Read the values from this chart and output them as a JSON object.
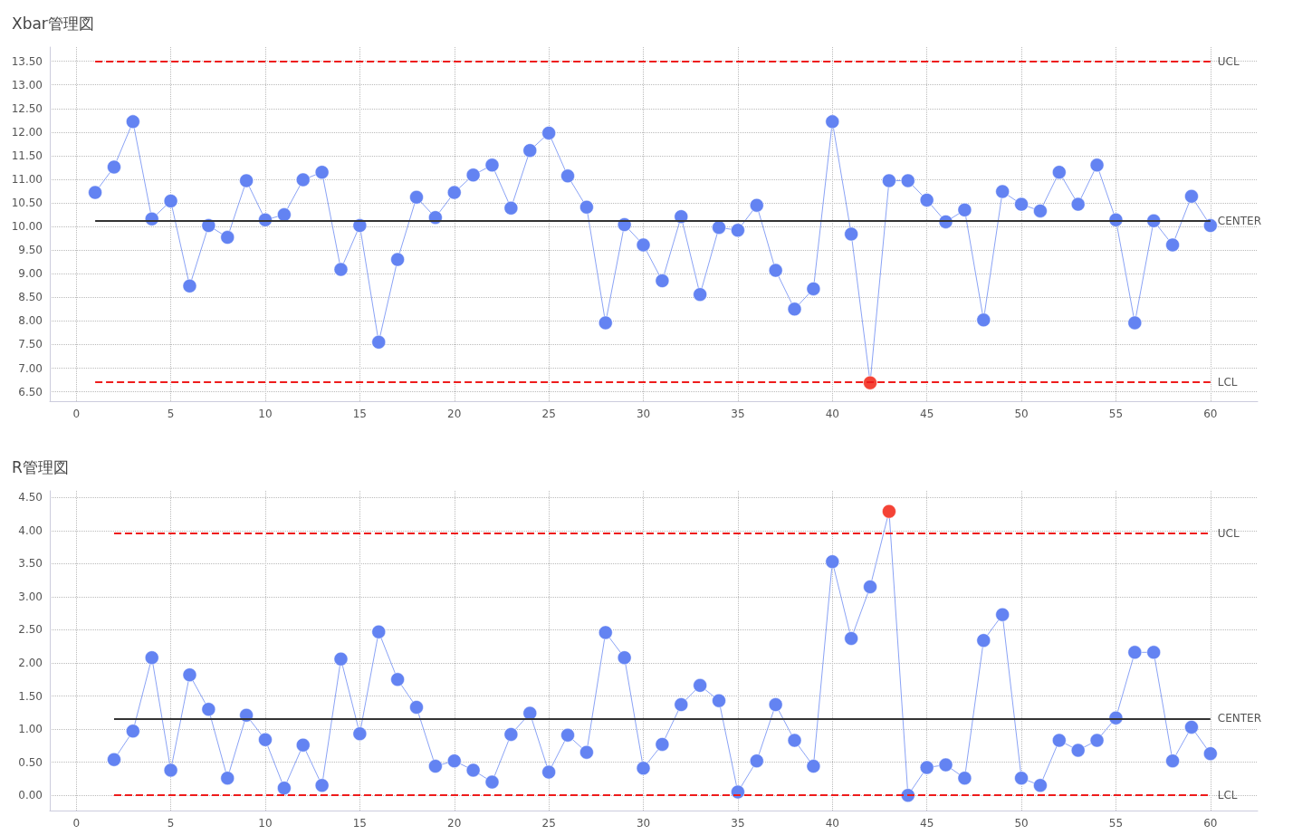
{
  "chart_data": [
    {
      "type": "line",
      "title": "Xbar管理図",
      "marker": "circle",
      "grid": true,
      "xlim": [
        -1.4,
        62.5
      ],
      "xticks": [
        0,
        5,
        10,
        15,
        20,
        25,
        30,
        35,
        40,
        45,
        50,
        55,
        60
      ],
      "ylim": [
        6.3,
        13.8
      ],
      "yticks": [
        {
          "value": 6.5,
          "label": "6.50"
        },
        {
          "value": 7,
          "label": "7.00"
        },
        {
          "value": 7.5,
          "label": "7.50"
        },
        {
          "value": 8,
          "label": "8.00"
        },
        {
          "value": 8.5,
          "label": "8.50"
        },
        {
          "value": 9,
          "label": "9.00"
        },
        {
          "value": 9.5,
          "label": "9.50"
        },
        {
          "value": 10,
          "label": "10.00"
        },
        {
          "value": 10.5,
          "label": "10.50"
        },
        {
          "value": 11,
          "label": "11.00"
        },
        {
          "value": 11.5,
          "label": "11.50"
        },
        {
          "value": 12,
          "label": "12.00"
        },
        {
          "value": 12.5,
          "label": "12.50"
        },
        {
          "value": 13,
          "label": "13.00"
        },
        {
          "value": 13.5,
          "label": "13.50"
        }
      ],
      "series": [
        {
          "color": "#6383f2",
          "x": [
            1,
            2,
            3,
            4,
            5,
            6,
            7,
            8,
            9,
            10,
            11,
            12,
            13,
            14,
            15,
            16,
            17,
            18,
            19,
            20,
            21,
            22,
            23,
            24,
            25,
            26,
            27,
            28,
            29,
            30,
            31,
            32,
            33,
            34,
            35,
            36,
            37,
            38,
            39,
            40,
            41,
            42,
            43,
            44,
            45,
            46,
            47,
            48,
            49,
            50,
            51,
            52,
            53,
            54,
            55,
            56,
            57,
            58,
            59,
            60
          ],
          "values": [
            10.72,
            11.26,
            12.22,
            10.16,
            10.54,
            8.74,
            10.02,
            9.77,
            10.97,
            10.14,
            10.25,
            10.99,
            11.15,
            9.09,
            10.02,
            7.55,
            9.3,
            10.62,
            10.19,
            10.72,
            11.09,
            11.3,
            10.39,
            11.61,
            11.98,
            11.07,
            10.41,
            7.96,
            10.04,
            9.61,
            8.85,
            10.21,
            8.56,
            9.98,
            9.92,
            10.45,
            9.07,
            8.25,
            8.68,
            12.22,
            9.84,
            6.69,
            10.97,
            10.97,
            10.56,
            10.1,
            10.35,
            8.02,
            10.74,
            10.47,
            10.33,
            11.15,
            10.47,
            11.3,
            10.14,
            7.96,
            10.12,
            9.61,
            10.64,
            10.02
          ],
          "colors": [
            "#6383f2",
            "#6383f2",
            "#6383f2",
            "#6383f2",
            "#6383f2",
            "#6383f2",
            "#6383f2",
            "#6383f2",
            "#6383f2",
            "#6383f2",
            "#6383f2",
            "#6383f2",
            "#6383f2",
            "#6383f2",
            "#6383f2",
            "#6383f2",
            "#6383f2",
            "#6383f2",
            "#6383f2",
            "#6383f2",
            "#6383f2",
            "#6383f2",
            "#6383f2",
            "#6383f2",
            "#6383f2",
            "#6383f2",
            "#6383f2",
            "#6383f2",
            "#6383f2",
            "#6383f2",
            "#6383f2",
            "#6383f2",
            "#6383f2",
            "#6383f2",
            "#6383f2",
            "#6383f2",
            "#6383f2",
            "#6383f2",
            "#6383f2",
            "#6383f2",
            "#6383f2",
            "#f44336",
            "#6383f2",
            "#6383f2",
            "#6383f2",
            "#6383f2",
            "#6383f2",
            "#6383f2",
            "#6383f2",
            "#6383f2",
            "#6383f2",
            "#6383f2",
            "#6383f2",
            "#6383f2",
            "#6383f2",
            "#6383f2",
            "#6383f2",
            "#6383f2",
            "#6383f2",
            "#6383f2"
          ]
        }
      ],
      "ref_lines": [
        {
          "axis": "y",
          "value": 13.5,
          "label": "UCL",
          "color": "#ee1c1c",
          "line_style": "dashed"
        },
        {
          "axis": "y",
          "value": 10.12,
          "label": "CENTER",
          "color": "#333333",
          "line_style": "solid"
        },
        {
          "axis": "y",
          "value": 6.71,
          "label": "LCL",
          "color": "#ee1c1c",
          "line_style": "dashed"
        }
      ]
    },
    {
      "type": "line",
      "title": "R管理図",
      "marker": "circle",
      "grid": true,
      "xlim": [
        -1.4,
        62.5
      ],
      "xticks": [
        0,
        5,
        10,
        15,
        20,
        25,
        30,
        35,
        40,
        45,
        50,
        55,
        60
      ],
      "ylim": [
        -0.23,
        4.6
      ],
      "yticks": [
        {
          "value": 0,
          "label": "0.00"
        },
        {
          "value": 0.5,
          "label": "0.50"
        },
        {
          "value": 1,
          "label": "1.00"
        },
        {
          "value": 1.5,
          "label": "1.50"
        },
        {
          "value": 2,
          "label": "2.00"
        },
        {
          "value": 2.5,
          "label": "2.50"
        },
        {
          "value": 3,
          "label": "3.00"
        },
        {
          "value": 3.5,
          "label": "3.50"
        },
        {
          "value": 4,
          "label": "4.00"
        },
        {
          "value": 4.5,
          "label": "4.50"
        }
      ],
      "series": [
        {
          "color": "#6383f2",
          "x": [
            2,
            3,
            4,
            5,
            6,
            7,
            8,
            9,
            10,
            11,
            12,
            13,
            14,
            15,
            16,
            17,
            18,
            19,
            20,
            21,
            22,
            23,
            24,
            25,
            26,
            27,
            28,
            29,
            30,
            31,
            32,
            33,
            34,
            35,
            36,
            37,
            38,
            39,
            40,
            41,
            42,
            43,
            44,
            45,
            46,
            47,
            48,
            49,
            50,
            51,
            52,
            53,
            54,
            55,
            56,
            57,
            58,
            59,
            60
          ],
          "values": [
            0.54,
            0.97,
            2.08,
            0.38,
            1.82,
            1.3,
            0.26,
            1.21,
            0.84,
            0.11,
            0.76,
            0.15,
            2.06,
            0.93,
            2.47,
            1.75,
            1.33,
            0.44,
            0.52,
            0.38,
            0.2,
            0.92,
            1.24,
            0.35,
            0.91,
            0.65,
            2.46,
            2.08,
            0.41,
            0.77,
            1.37,
            1.66,
            1.43,
            0.05,
            0.52,
            1.37,
            0.83,
            0.44,
            3.53,
            2.37,
            3.15,
            4.29,
            0,
            0.42,
            0.46,
            0.26,
            2.34,
            2.73,
            0.26,
            0.15,
            0.83,
            0.68,
            0.83,
            1.17,
            2.16,
            2.16,
            0.52,
            1.03,
            0.63
          ],
          "colors": [
            "#6383f2",
            "#6383f2",
            "#6383f2",
            "#6383f2",
            "#6383f2",
            "#6383f2",
            "#6383f2",
            "#6383f2",
            "#6383f2",
            "#6383f2",
            "#6383f2",
            "#6383f2",
            "#6383f2",
            "#6383f2",
            "#6383f2",
            "#6383f2",
            "#6383f2",
            "#6383f2",
            "#6383f2",
            "#6383f2",
            "#6383f2",
            "#6383f2",
            "#6383f2",
            "#6383f2",
            "#6383f2",
            "#6383f2",
            "#6383f2",
            "#6383f2",
            "#6383f2",
            "#6383f2",
            "#6383f2",
            "#6383f2",
            "#6383f2",
            "#6383f2",
            "#6383f2",
            "#6383f2",
            "#6383f2",
            "#6383f2",
            "#6383f2",
            "#6383f2",
            "#6383f2",
            "#f44336",
            "#6383f2",
            "#6383f2",
            "#6383f2",
            "#6383f2",
            "#6383f2",
            "#6383f2",
            "#6383f2",
            "#6383f2",
            "#6383f2",
            "#6383f2",
            "#6383f2",
            "#6383f2",
            "#6383f2",
            "#6383f2",
            "#6383f2",
            "#6383f2",
            "#6383f2"
          ]
        }
      ],
      "ref_lines": [
        {
          "axis": "y",
          "value": 3.96,
          "label": "UCL",
          "color": "#ee1c1c",
          "line_style": "dashed"
        },
        {
          "axis": "y",
          "value": 1.16,
          "label": "CENTER",
          "color": "#333333",
          "line_style": "solid"
        },
        {
          "axis": "y",
          "value": 0,
          "label": "LCL",
          "color": "#ee1c1c",
          "line_style": "dashed"
        }
      ]
    }
  ]
}
